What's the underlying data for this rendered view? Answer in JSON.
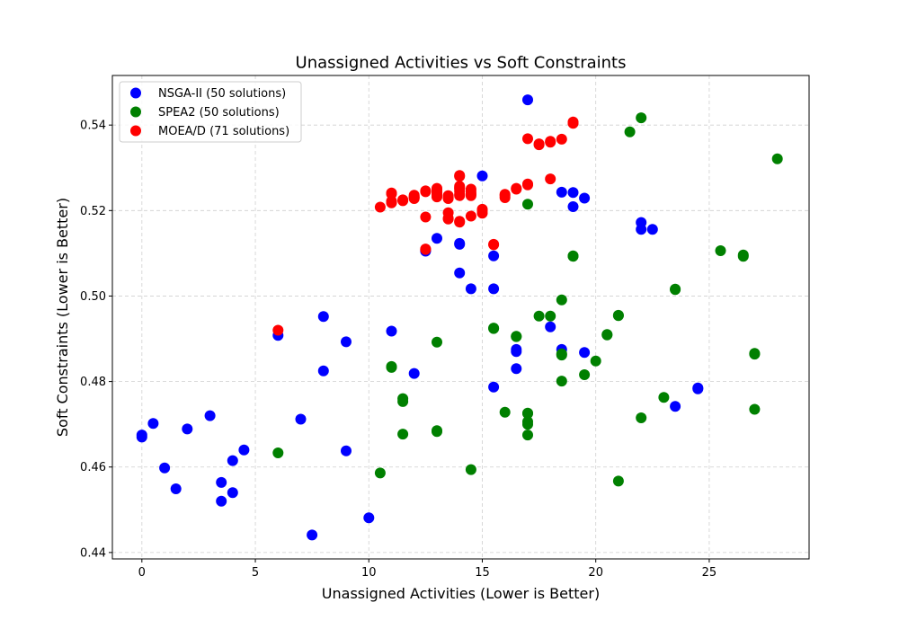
{
  "chart_data": {
    "type": "scatter",
    "title": "Unassigned Activities vs Soft Constraints",
    "xlabel": "Unassigned Activities (Lower is Better)",
    "ylabel": "Soft Constraints (Lower is Better)",
    "xlim": [
      -1.3,
      29.4
    ],
    "ylim": [
      0.4385,
      0.5516
    ],
    "xticks": [
      0,
      5,
      10,
      15,
      20,
      25
    ],
    "xtick_labels": [
      "0",
      "5",
      "10",
      "15",
      "20",
      "25"
    ],
    "yticks": [
      0.44,
      0.46,
      0.48,
      0.5,
      0.52,
      0.54
    ],
    "ytick_labels": [
      "0.44",
      "0.46",
      "0.48",
      "0.50",
      "0.52",
      "0.54"
    ],
    "grid": true,
    "legend_position": "upper-left",
    "series": [
      {
        "name": "NSGA-II (50 solutions)",
        "color": "#0000ff",
        "points": [
          [
            0,
            0.4675
          ],
          [
            0,
            0.467
          ],
          [
            0.5,
            0.4702
          ],
          [
            1,
            0.4598
          ],
          [
            1.5,
            0.4549
          ],
          [
            2,
            0.4689
          ],
          [
            3,
            0.472
          ],
          [
            3.5,
            0.4564
          ],
          [
            3.5,
            0.452
          ],
          [
            4,
            0.4615
          ],
          [
            4,
            0.454
          ],
          [
            4.5,
            0.464
          ],
          [
            6,
            0.4908
          ],
          [
            7,
            0.4712
          ],
          [
            7.5,
            0.4441
          ],
          [
            8,
            0.4952
          ],
          [
            8,
            0.4825
          ],
          [
            9,
            0.4893
          ],
          [
            9,
            0.4638
          ],
          [
            10,
            0.4481
          ],
          [
            11,
            0.4918
          ],
          [
            12,
            0.4819
          ],
          [
            12.5,
            0.5107
          ],
          [
            13,
            0.5135
          ],
          [
            14,
            0.5121
          ],
          [
            14,
            0.5054
          ],
          [
            14.5,
            0.5017
          ],
          [
            15,
            0.5281
          ],
          [
            15.5,
            0.5094
          ],
          [
            15.5,
            0.5017
          ],
          [
            15.5,
            0.4787
          ],
          [
            16.5,
            0.4875
          ],
          [
            16.5,
            0.483
          ],
          [
            17,
            0.5459
          ],
          [
            18,
            0.4928
          ],
          [
            18.5,
            0.5243
          ],
          [
            18.5,
            0.4875
          ],
          [
            19,
            0.5242
          ],
          [
            19,
            0.5209
          ],
          [
            19.5,
            0.5229
          ],
          [
            19.5,
            0.4868
          ],
          [
            22,
            0.5172
          ],
          [
            22,
            0.5156
          ],
          [
            22.5,
            0.5156
          ],
          [
            23.5,
            0.4742
          ],
          [
            24.5,
            0.4783
          ],
          [
            24.5,
            0.4785
          ],
          [
            12.5,
            0.5105
          ],
          [
            16.5,
            0.487
          ],
          [
            14,
            0.5123
          ]
        ]
      },
      {
        "name": "SPEA2 (50 solutions)",
        "color": "#008000",
        "points": [
          [
            6,
            0.4633
          ],
          [
            10.5,
            0.4586
          ],
          [
            11,
            0.4833
          ],
          [
            11.5,
            0.476
          ],
          [
            11.5,
            0.4753
          ],
          [
            11.5,
            0.4677
          ],
          [
            13,
            0.4892
          ],
          [
            13,
            0.4683
          ],
          [
            14.5,
            0.4594
          ],
          [
            15.5,
            0.4925
          ],
          [
            16,
            0.4728
          ],
          [
            16.5,
            0.4906
          ],
          [
            17,
            0.5215
          ],
          [
            17,
            0.4726
          ],
          [
            17,
            0.4706
          ],
          [
            17,
            0.47
          ],
          [
            17,
            0.4675
          ],
          [
            17.5,
            0.4953
          ],
          [
            18,
            0.4953
          ],
          [
            18.5,
            0.4991
          ],
          [
            18.5,
            0.4862
          ],
          [
            18.5,
            0.4801
          ],
          [
            19,
            0.5093
          ],
          [
            19.5,
            0.4816
          ],
          [
            20,
            0.4848
          ],
          [
            20.5,
            0.491
          ],
          [
            21,
            0.4955
          ],
          [
            21,
            0.4567
          ],
          [
            21.5,
            0.5384
          ],
          [
            22,
            0.5417
          ],
          [
            22,
            0.4715
          ],
          [
            23,
            0.4763
          ],
          [
            23.5,
            0.5016
          ],
          [
            25.5,
            0.5106
          ],
          [
            26.5,
            0.5093
          ],
          [
            26.5,
            0.5096
          ],
          [
            27,
            0.4864
          ],
          [
            27,
            0.4866
          ],
          [
            27,
            0.4735
          ],
          [
            28,
            0.5321
          ],
          [
            17,
            0.4725
          ],
          [
            18.5,
            0.4865
          ],
          [
            16.5,
            0.4905
          ],
          [
            11,
            0.4835
          ],
          [
            13,
            0.4685
          ],
          [
            15.5,
            0.4924
          ],
          [
            20.5,
            0.4909
          ],
          [
            21,
            0.4954
          ],
          [
            19,
            0.5094
          ],
          [
            23.5,
            0.5015
          ]
        ]
      },
      {
        "name": "MOEA/D (71 solutions)",
        "color": "#ff0000",
        "points": [
          [
            6,
            0.492
          ],
          [
            10.5,
            0.5208
          ],
          [
            11,
            0.5241
          ],
          [
            11,
            0.5218
          ],
          [
            11,
            0.5222
          ],
          [
            11.5,
            0.5224
          ],
          [
            11.5,
            0.5225
          ],
          [
            12,
            0.5236
          ],
          [
            12,
            0.5231
          ],
          [
            12,
            0.5228
          ],
          [
            12.5,
            0.5246
          ],
          [
            12.5,
            0.5185
          ],
          [
            12.5,
            0.5109
          ],
          [
            13,
            0.5252
          ],
          [
            13,
            0.5243
          ],
          [
            13,
            0.5237
          ],
          [
            13,
            0.5232
          ],
          [
            13.5,
            0.5235
          ],
          [
            13.5,
            0.5228
          ],
          [
            13.5,
            0.5195
          ],
          [
            13.5,
            0.518
          ],
          [
            14,
            0.5282
          ],
          [
            14,
            0.5257
          ],
          [
            14,
            0.5251
          ],
          [
            14,
            0.5245
          ],
          [
            14,
            0.5235
          ],
          [
            14,
            0.5173
          ],
          [
            14.5,
            0.525
          ],
          [
            14.5,
            0.524
          ],
          [
            14.5,
            0.5235
          ],
          [
            14.5,
            0.5187
          ],
          [
            15,
            0.5203
          ],
          [
            15,
            0.5194
          ],
          [
            15.5,
            0.5121
          ],
          [
            16,
            0.5238
          ],
          [
            16,
            0.523
          ],
          [
            16.5,
            0.5252
          ],
          [
            17,
            0.5368
          ],
          [
            17,
            0.526
          ],
          [
            17.5,
            0.5354
          ],
          [
            18,
            0.536
          ],
          [
            18,
            0.5274
          ],
          [
            18.5,
            0.5367
          ],
          [
            19,
            0.5407
          ],
          [
            19,
            0.5404
          ],
          [
            11,
            0.522
          ],
          [
            11.5,
            0.5223
          ],
          [
            12,
            0.5233
          ],
          [
            12.5,
            0.5244
          ],
          [
            13,
            0.525
          ],
          [
            13,
            0.524
          ],
          [
            13.5,
            0.5232
          ],
          [
            14,
            0.5253
          ],
          [
            14,
            0.5238
          ],
          [
            14.5,
            0.5245
          ],
          [
            14.5,
            0.5238
          ],
          [
            15,
            0.52
          ],
          [
            16,
            0.5235
          ],
          [
            16.5,
            0.525
          ],
          [
            17,
            0.5262
          ],
          [
            12,
            0.523
          ],
          [
            13.5,
            0.5182
          ],
          [
            14,
            0.5175
          ],
          [
            12.5,
            0.511
          ],
          [
            15.5,
            0.512
          ],
          [
            13,
            0.5248
          ],
          [
            11,
            0.5239
          ],
          [
            14,
            0.528
          ],
          [
            18,
            0.5362
          ],
          [
            17.5,
            0.5356
          ],
          [
            19,
            0.5405
          ]
        ]
      }
    ]
  }
}
